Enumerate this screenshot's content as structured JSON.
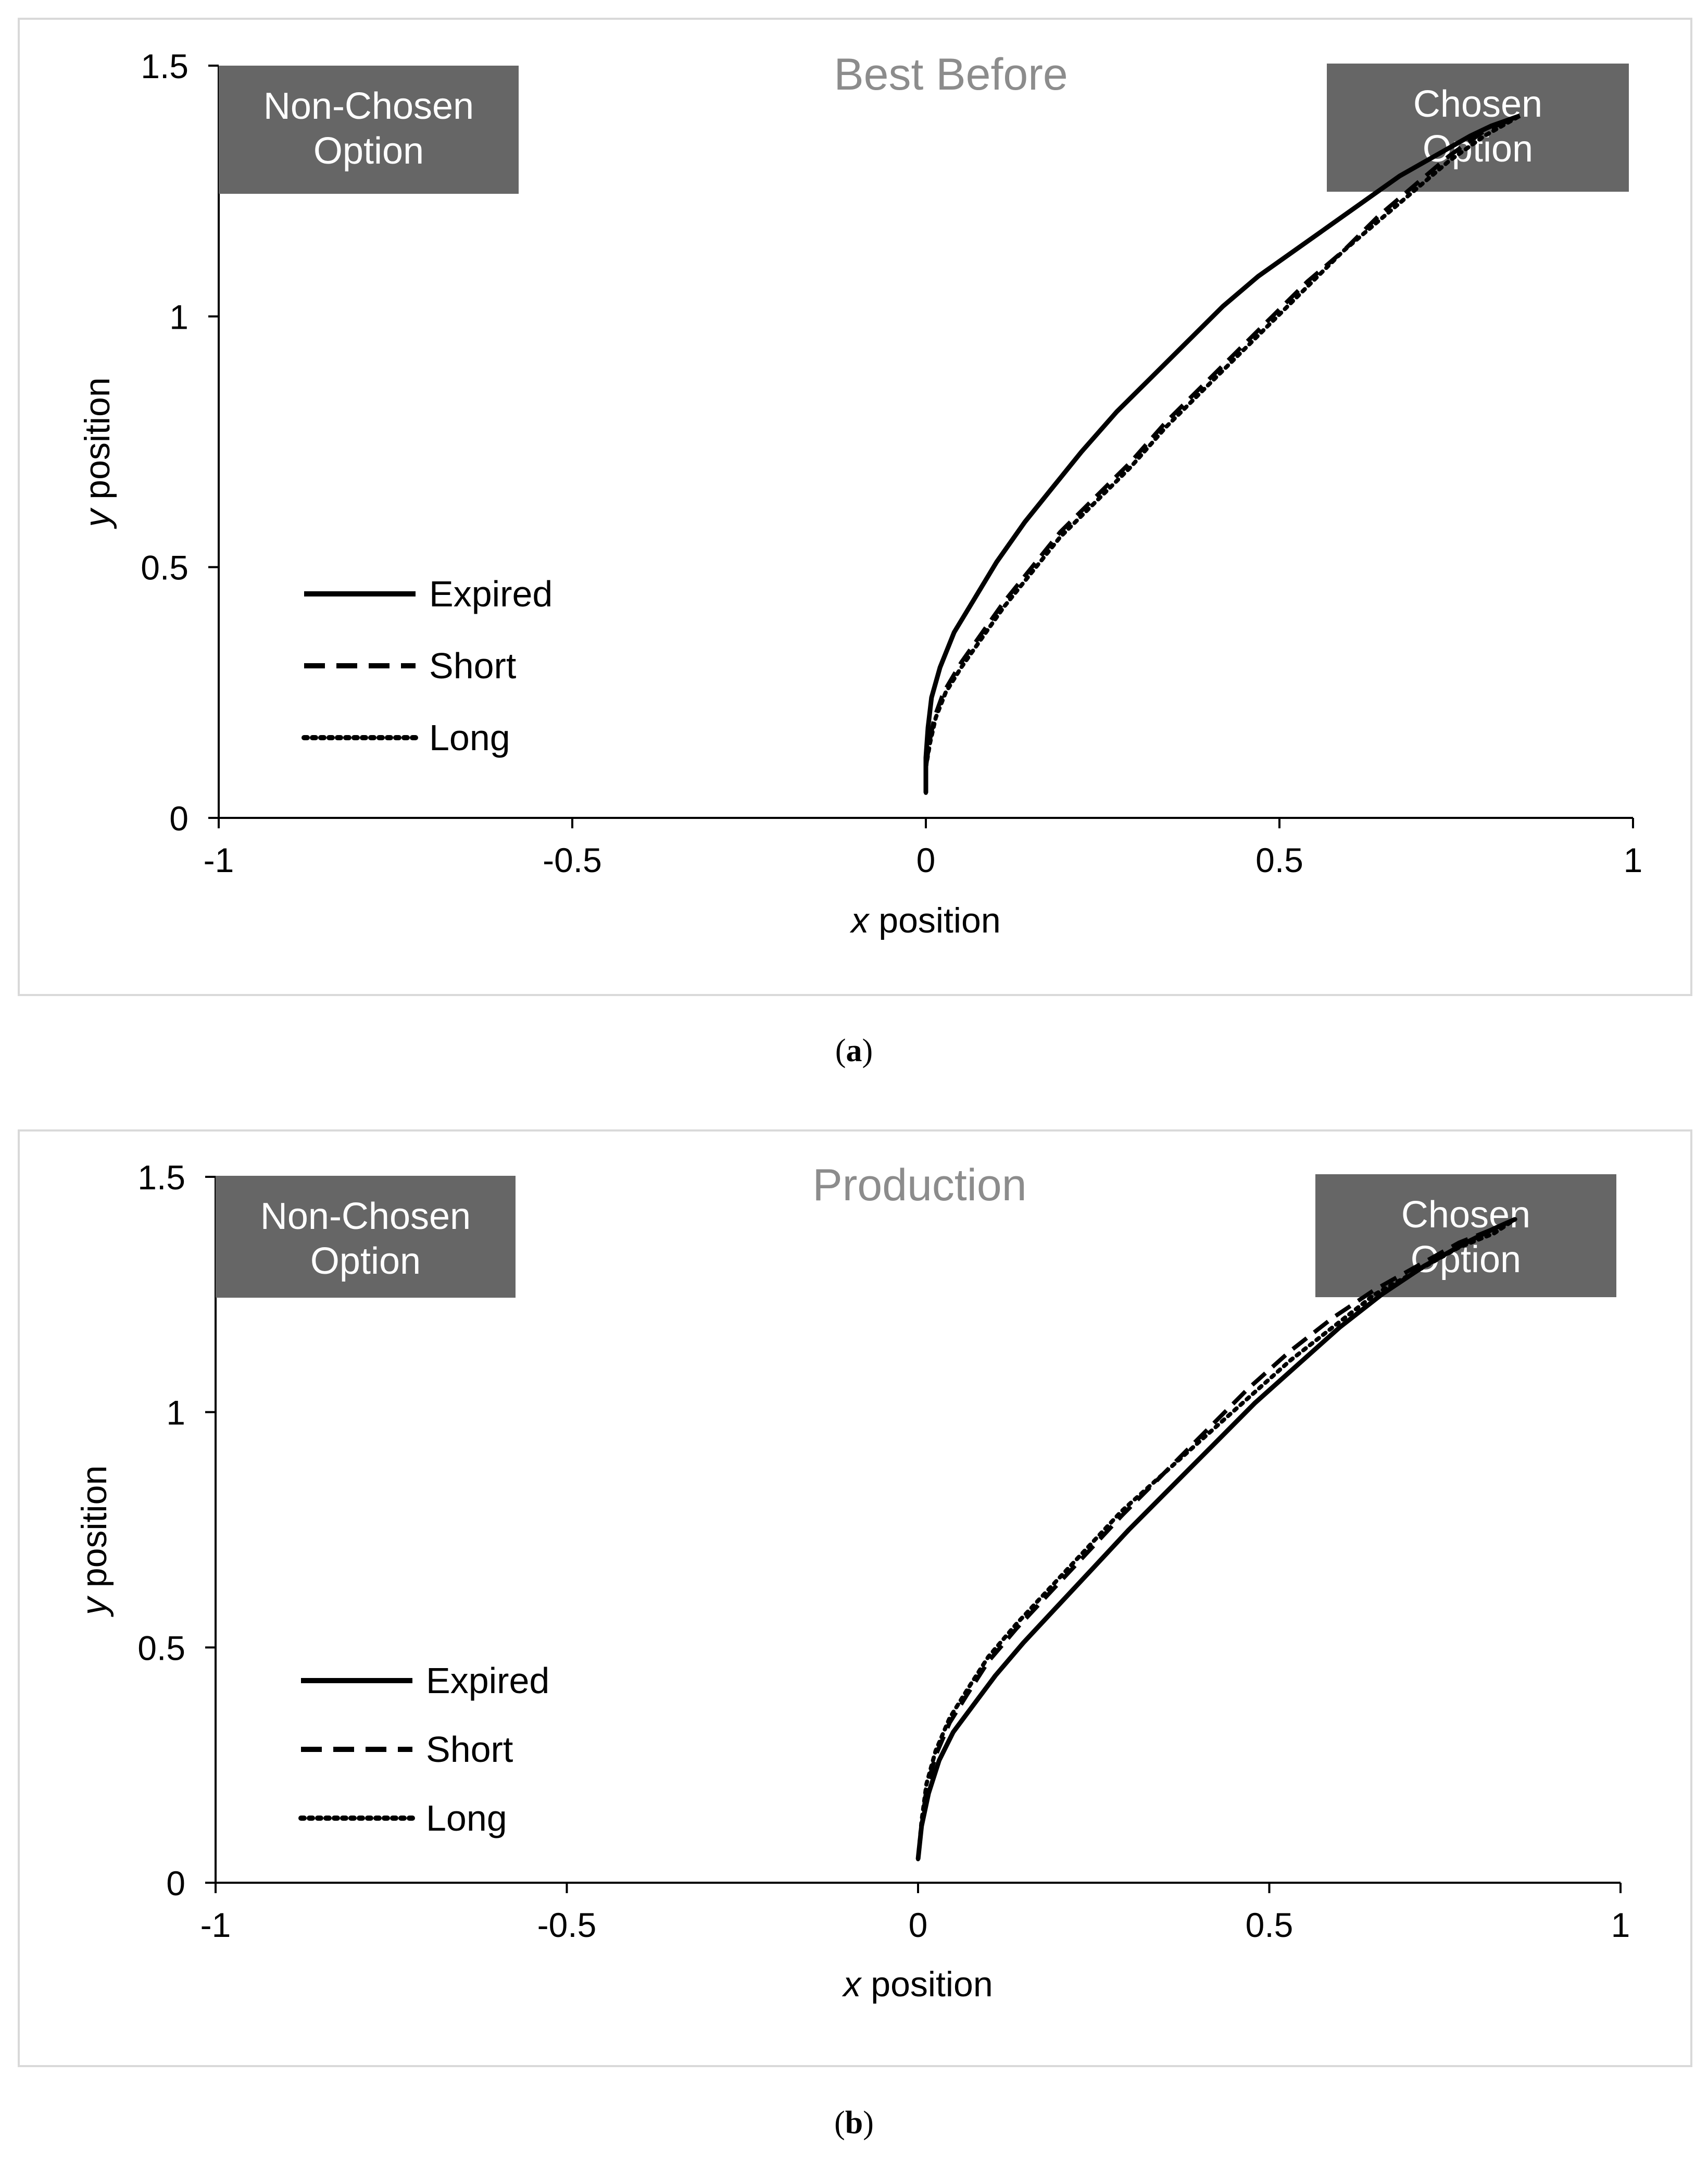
{
  "chart_data": [
    {
      "type": "line",
      "panel": "a",
      "caption_letter": "a",
      "title": "Best Before",
      "xlabel_italic": "x",
      "xlabel_rest": " position",
      "ylabel_italic": "y",
      "ylabel_rest": " position",
      "xlim": [
        -1,
        1
      ],
      "ylim": [
        0,
        1.5
      ],
      "xticks": [
        -1,
        -0.5,
        0,
        0.5,
        1
      ],
      "xtick_labels": [
        "-1",
        "-0.5",
        "0",
        "0.5",
        "1"
      ],
      "yticks": [
        0,
        0.5,
        1,
        1.5
      ],
      "ytick_labels": [
        "0",
        "0.5",
        "1",
        "1.5"
      ],
      "boxes": [
        {
          "name": "non-chosen",
          "lines": [
            "Non-Chosen",
            "Option"
          ],
          "color": "#666666"
        },
        {
          "name": "chosen",
          "lines": [
            "Chosen",
            "Option"
          ],
          "color": "#666666"
        }
      ],
      "legend_position": "left",
      "series": [
        {
          "name": "Expired",
          "style": "solid",
          "x": [
            0.0,
            0.0,
            0.003,
            0.008,
            0.02,
            0.04,
            0.07,
            0.1,
            0.14,
            0.18,
            0.22,
            0.27,
            0.32,
            0.37,
            0.42,
            0.47,
            0.52,
            0.57,
            0.62,
            0.67,
            0.72,
            0.77,
            0.8,
            0.84
          ],
          "y": [
            0.05,
            0.12,
            0.18,
            0.24,
            0.3,
            0.37,
            0.44,
            0.51,
            0.59,
            0.66,
            0.73,
            0.81,
            0.88,
            0.95,
            1.02,
            1.08,
            1.13,
            1.18,
            1.23,
            1.28,
            1.32,
            1.36,
            1.38,
            1.4
          ]
        },
        {
          "name": "Short",
          "style": "dashed",
          "x": [
            0.0,
            0.0,
            0.005,
            0.012,
            0.025,
            0.05,
            0.08,
            0.11,
            0.15,
            0.19,
            0.24,
            0.29,
            0.34,
            0.39,
            0.44,
            0.49,
            0.54,
            0.59,
            0.64,
            0.69,
            0.74,
            0.79,
            0.84
          ],
          "y": [
            0.05,
            0.1,
            0.15,
            0.2,
            0.25,
            0.31,
            0.37,
            0.43,
            0.5,
            0.57,
            0.64,
            0.71,
            0.79,
            0.86,
            0.93,
            1.0,
            1.07,
            1.13,
            1.2,
            1.26,
            1.32,
            1.37,
            1.4
          ]
        },
        {
          "name": "Long",
          "style": "dotted",
          "x": [
            0.0,
            0.0,
            0.006,
            0.014,
            0.028,
            0.05,
            0.08,
            0.11,
            0.15,
            0.19,
            0.24,
            0.29,
            0.34,
            0.39,
            0.44,
            0.49,
            0.54,
            0.59,
            0.64,
            0.69,
            0.74,
            0.79,
            0.84
          ],
          "y": [
            0.05,
            0.1,
            0.15,
            0.2,
            0.25,
            0.3,
            0.36,
            0.42,
            0.49,
            0.56,
            0.63,
            0.7,
            0.78,
            0.85,
            0.92,
            0.99,
            1.06,
            1.13,
            1.19,
            1.25,
            1.31,
            1.36,
            1.4
          ]
        }
      ]
    },
    {
      "type": "line",
      "panel": "b",
      "caption_letter": "b",
      "title": "Production",
      "xlabel_italic": "x",
      "xlabel_rest": " position",
      "ylabel_italic": "y",
      "ylabel_rest": " position",
      "xlim": [
        -1,
        1
      ],
      "ylim": [
        0,
        1.5
      ],
      "xticks": [
        -1,
        -0.5,
        0,
        0.5,
        1
      ],
      "xtick_labels": [
        "-1",
        "-0.5",
        "0",
        "0.5",
        "1"
      ],
      "yticks": [
        0,
        0.5,
        1,
        1.5
      ],
      "ytick_labels": [
        "0",
        "0.5",
        "1",
        "1.5"
      ],
      "boxes": [
        {
          "name": "non-chosen",
          "lines": [
            "Non-Chosen",
            "Option"
          ],
          "color": "#666666"
        },
        {
          "name": "chosen",
          "lines": [
            "Chosen",
            "Option"
          ],
          "color": "#666666"
        }
      ],
      "legend_position": "left",
      "series": [
        {
          "name": "Expired",
          "style": "solid",
          "x": [
            0.0,
            0.005,
            0.015,
            0.03,
            0.05,
            0.08,
            0.11,
            0.15,
            0.2,
            0.25,
            0.3,
            0.36,
            0.42,
            0.48,
            0.54,
            0.6,
            0.66,
            0.72,
            0.78,
            0.82,
            0.85
          ],
          "y": [
            0.05,
            0.12,
            0.19,
            0.26,
            0.32,
            0.38,
            0.44,
            0.51,
            0.59,
            0.67,
            0.75,
            0.84,
            0.93,
            1.02,
            1.1,
            1.18,
            1.25,
            1.31,
            1.36,
            1.39,
            1.41
          ]
        },
        {
          "name": "Short",
          "style": "dashed",
          "x": [
            0.0,
            0.005,
            0.012,
            0.025,
            0.045,
            0.07,
            0.1,
            0.14,
            0.19,
            0.24,
            0.29,
            0.35,
            0.41,
            0.47,
            0.53,
            0.59,
            0.65,
            0.71,
            0.77,
            0.82,
            0.85
          ],
          "y": [
            0.05,
            0.12,
            0.2,
            0.27,
            0.34,
            0.4,
            0.47,
            0.54,
            0.62,
            0.7,
            0.78,
            0.87,
            0.96,
            1.05,
            1.13,
            1.2,
            1.26,
            1.31,
            1.36,
            1.39,
            1.41
          ]
        },
        {
          "name": "Long",
          "style": "dotted",
          "x": [
            0.0,
            0.005,
            0.012,
            0.025,
            0.045,
            0.07,
            0.1,
            0.14,
            0.19,
            0.24,
            0.29,
            0.35,
            0.41,
            0.47,
            0.53,
            0.59,
            0.65,
            0.71,
            0.77,
            0.82,
            0.85
          ],
          "y": [
            0.05,
            0.13,
            0.21,
            0.28,
            0.35,
            0.41,
            0.48,
            0.55,
            0.63,
            0.71,
            0.79,
            0.87,
            0.95,
            1.03,
            1.11,
            1.18,
            1.25,
            1.3,
            1.35,
            1.38,
            1.41
          ]
        }
      ]
    }
  ]
}
